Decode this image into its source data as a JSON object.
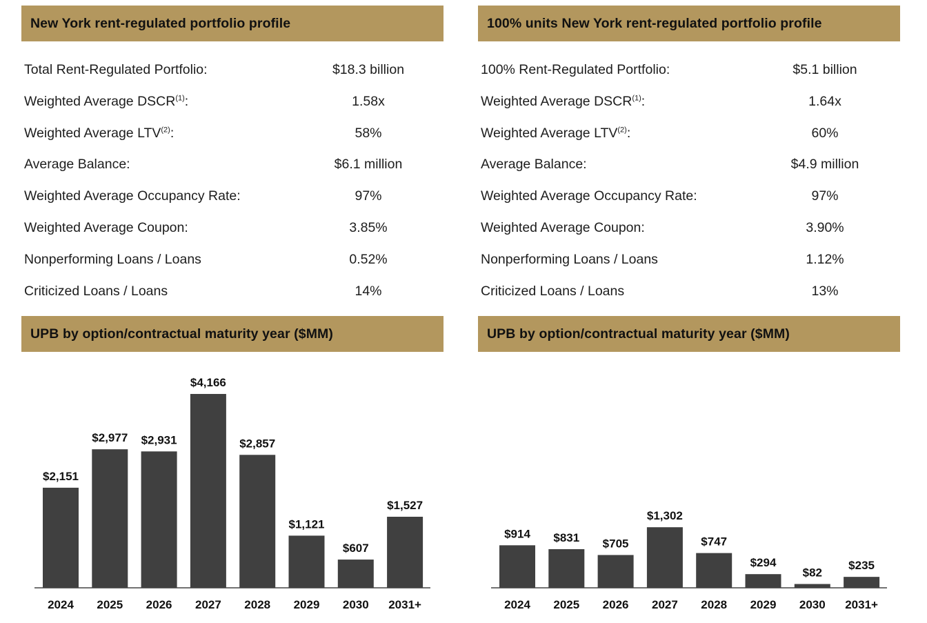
{
  "colors": {
    "banner": "#b3975e",
    "bar": "#404040",
    "axis": "#444444"
  },
  "left": {
    "header_title": "New York rent-regulated portfolio profile",
    "metrics": [
      {
        "label": "Total Rent-Regulated Portfolio:",
        "value": "$18.3 billion"
      },
      {
        "label": "Weighted Average DSCR",
        "sup": "(1)",
        "suffix": ":",
        "value": "1.58x"
      },
      {
        "label": "Weighted Average LTV",
        "sup": "(2)",
        "suffix": ":",
        "value": "58%"
      },
      {
        "label": "Average Balance:",
        "value": "$6.1 million"
      },
      {
        "label": "Weighted Average Occupancy Rate:",
        "value": "97%"
      },
      {
        "label": "Weighted Average Coupon:",
        "value": "3.85%"
      },
      {
        "label": "Nonperforming Loans / Loans",
        "value": "0.52%"
      },
      {
        "label": "Criticized Loans / Loans",
        "value": "14%"
      }
    ],
    "chart_title": "UPB by option/contractual maturity year  ($MM)"
  },
  "right": {
    "header_title": "100% units New York rent-regulated portfolio profile",
    "metrics": [
      {
        "label": "100% Rent-Regulated Portfolio:",
        "value": "$5.1 billion"
      },
      {
        "label": "Weighted Average DSCR",
        "sup": "(1)",
        "suffix": ":",
        "value": "1.64x"
      },
      {
        "label": "Weighted Average LTV",
        "sup": "(2)",
        "suffix": ":",
        "value": "60%"
      },
      {
        "label": "Average Balance:",
        "value": "$4.9 million"
      },
      {
        "label": "Weighted Average Occupancy Rate:",
        "value": "97%"
      },
      {
        "label": "Weighted Average Coupon:",
        "value": "3.90%"
      },
      {
        "label": "Nonperforming Loans / Loans",
        "value": "1.12%"
      },
      {
        "label": "Criticized Loans / Loans",
        "value": "13%"
      }
    ],
    "chart_title": "UPB by option/contractual maturity year  ($MM)"
  },
  "chart_data": [
    {
      "type": "bar",
      "title": "UPB by option/contractual maturity year  ($MM)",
      "categories": [
        "2024",
        "2025",
        "2026",
        "2027",
        "2028",
        "2029",
        "2030",
        "2031+"
      ],
      "values": [
        2151,
        2977,
        2931,
        4166,
        2857,
        1121,
        607,
        1527
      ],
      "data_labels": [
        "$2,151",
        "$2,977",
        "$2,931",
        "$4,166",
        "$2,857",
        "$1,121",
        "$607",
        "$1,527"
      ],
      "xlabel": "",
      "ylabel": "",
      "ylim": [
        0,
        4166
      ],
      "grid": false
    },
    {
      "type": "bar",
      "title": "UPB by option/contractual maturity year  ($MM)",
      "categories": [
        "2024",
        "2025",
        "2026",
        "2027",
        "2028",
        "2029",
        "2030",
        "2031+"
      ],
      "values": [
        914,
        831,
        705,
        1302,
        747,
        294,
        82,
        235
      ],
      "data_labels": [
        "$914",
        "$831",
        "$705",
        "$1,302",
        "$747",
        "$294",
        "$82",
        "$235"
      ],
      "xlabel": "",
      "ylabel": "",
      "ylim": [
        0,
        4166
      ],
      "grid": false
    }
  ]
}
